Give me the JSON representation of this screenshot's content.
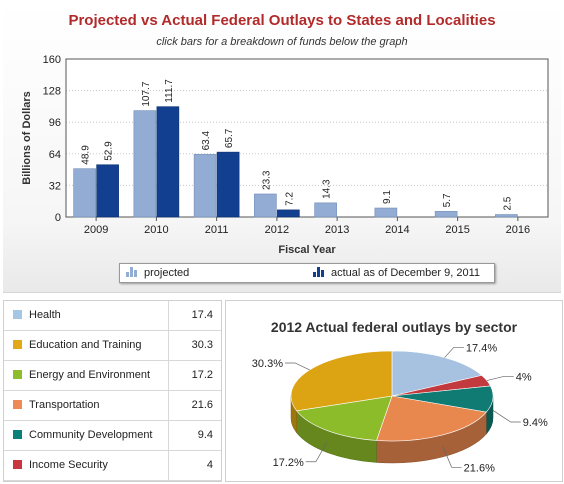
{
  "bar_chart": {
    "title": "Projected vs Actual Federal Outlays to States and Localities",
    "subtitle": "click bars for a breakdown of funds below the graph",
    "legend": {
      "projected": "projected",
      "actual": "actual as of December 9, 2011"
    },
    "colors": {
      "projected": "#93acd3",
      "actual": "#123f8f"
    }
  },
  "chart_data": [
    {
      "type": "bar",
      "title": "Projected vs Actual Federal Outlays to States and Localities",
      "subtitle": "click bars for a breakdown of funds below the graph",
      "xlabel": "Fiscal Year",
      "ylabel": "Billions of Dollars",
      "categories": [
        "2009",
        "2010",
        "2011",
        "2012",
        "2013",
        "2014",
        "2015",
        "2016"
      ],
      "series": [
        {
          "name": "projected",
          "values": [
            48.9,
            107.7,
            63.4,
            23.3,
            14.3,
            9.1,
            5.7,
            2.5
          ]
        },
        {
          "name": "actual as of December 9, 2011",
          "values": [
            52.9,
            111.7,
            65.7,
            7.2,
            null,
            null,
            null,
            null
          ]
        }
      ],
      "ylim": [
        0,
        160
      ],
      "yticks": [
        0,
        32,
        64,
        96,
        128,
        160
      ],
      "grid": true,
      "data_labels": true,
      "legend_position": "bottom"
    },
    {
      "type": "pie",
      "title": "2012 Actual federal outlays by sector",
      "slices": [
        {
          "label": "Health",
          "value": 17.4,
          "display": "17.4%",
          "color": "#a6c2e0"
        },
        {
          "label": "Income Security",
          "value": 4,
          "display": "4%",
          "color": "#c23a3e"
        },
        {
          "label": "Community Development",
          "value": 9.4,
          "display": "9.4%",
          "color": "#0f7b73"
        },
        {
          "label": "Transportation",
          "value": 21.6,
          "display": "21.6%",
          "color": "#e8874e"
        },
        {
          "label": "Energy and Environment",
          "value": 17.2,
          "display": "17.2%",
          "color": "#8cbc2a"
        },
        {
          "label": "Education and Training",
          "value": 30.3,
          "display": "30.3%",
          "color": "#dca412"
        }
      ],
      "three_d": true
    }
  ],
  "sector_table": {
    "rows": [
      {
        "label": "Health",
        "value": "17.4",
        "color": "#a6c6e6"
      },
      {
        "label": "Education and Training",
        "value": "30.3",
        "color": "#e3a818"
      },
      {
        "label": "Energy and Environment",
        "value": "17.2",
        "color": "#8dbc2c"
      },
      {
        "label": "Transportation",
        "value": "21.6",
        "color": "#ee8a54"
      },
      {
        "label": "Community Development",
        "value": "9.4",
        "color": "#0d7f7a"
      },
      {
        "label": "Income Security",
        "value": "4",
        "color": "#c9363d"
      }
    ]
  },
  "pie_chart": {
    "title": "2012 Actual federal outlays by sector"
  }
}
